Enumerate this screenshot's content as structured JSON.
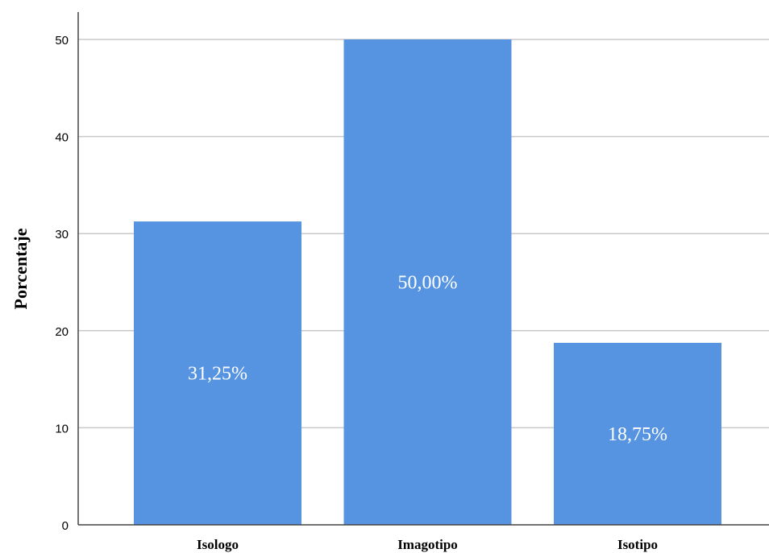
{
  "chart_data": {
    "type": "bar",
    "title": "",
    "xlabel": "",
    "ylabel": "Porcentaje",
    "categories": [
      "Isologo",
      "Imagotipo",
      "Isotipo"
    ],
    "values": [
      31.25,
      50.0,
      18.75
    ],
    "data_labels": [
      "31,25%",
      "50,00%",
      "18,75%"
    ],
    "ylim": [
      0,
      50
    ],
    "yticks": [
      0,
      10,
      20,
      30,
      40,
      50
    ],
    "grid": true,
    "bar_color": "#5694e2",
    "grid_color": "#c8c8c8"
  }
}
